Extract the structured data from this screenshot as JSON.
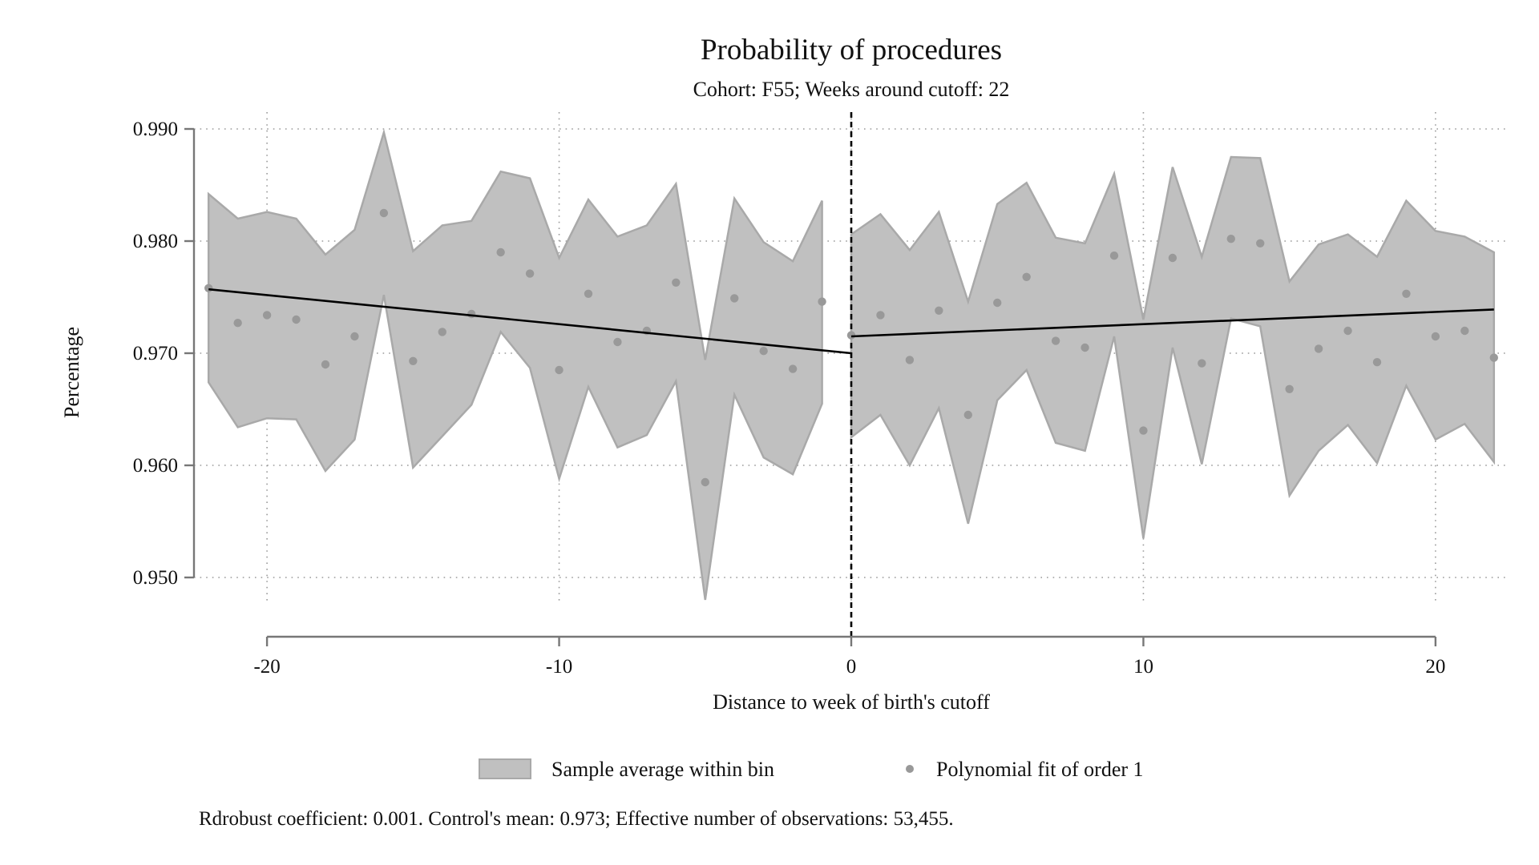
{
  "chart_data": {
    "type": "scatter",
    "title": "Probability of procedures",
    "subtitle": "Cohort: F55; Weeks around cutoff: 22",
    "xlabel": "Distance to week of birth's cutoff",
    "ylabel": "Percentage",
    "xlim": [
      -22.5,
      22.5
    ],
    "ylim": [
      0.9465,
      0.9915
    ],
    "xticks": [
      -20,
      -10,
      0,
      10,
      20
    ],
    "xtick_labels": [
      "-20",
      "-10",
      "0",
      "10",
      "20"
    ],
    "yticks": [
      0.95,
      0.96,
      0.97,
      0.98,
      0.99
    ],
    "ytick_labels": [
      "0.950",
      "0.960",
      "0.970",
      "0.980",
      "0.990"
    ],
    "grid": true,
    "cutoff_x": 0,
    "legend_position": "bottom",
    "legend": [
      "Sample average within bin",
      "Polynomial fit of order 1"
    ],
    "note": "Rdrobust coefficient: 0.001. Control's mean: 0.973; Effective number of observations: 53,455.",
    "colors": {
      "band": "#c0c0c0",
      "band_edge": "#a9a9a9",
      "points": "#999999",
      "fit": "#000000",
      "axis": "#777777",
      "grid": "#9a9a9a"
    },
    "series": [
      {
        "name": "Sample average within bin",
        "x": [
          -22,
          -21,
          -20,
          -19,
          -18,
          -17,
          -16,
          -15,
          -14,
          -13,
          -12,
          -11,
          -10,
          -9,
          -8,
          -7,
          -6,
          -5,
          -4,
          -3,
          -2,
          -1
        ],
        "y": [
          0.9758,
          0.9727,
          0.9734,
          0.973,
          0.969,
          0.9715,
          0.9825,
          0.9693,
          0.9719,
          0.9735,
          0.979,
          0.9771,
          0.9685,
          0.9753,
          0.971,
          0.972,
          0.9763,
          0.9585,
          0.9749,
          0.9702,
          0.9686,
          0.9746
        ],
        "ci_low": [
          0.9674,
          0.9634,
          0.9642,
          0.9641,
          0.9595,
          0.9623,
          0.9752,
          0.9598,
          0.9626,
          0.9654,
          0.9719,
          0.9687,
          0.9588,
          0.967,
          0.9616,
          0.9627,
          0.9675,
          0.948,
          0.9663,
          0.9607,
          0.9592,
          0.9655
        ],
        "ci_high": [
          0.9842,
          0.982,
          0.9826,
          0.982,
          0.9788,
          0.981,
          0.9897,
          0.9791,
          0.9814,
          0.9818,
          0.9862,
          0.9856,
          0.9785,
          0.9837,
          0.9804,
          0.9814,
          0.9851,
          0.9694,
          0.9838,
          0.9799,
          0.9782,
          0.9836
        ]
      },
      {
        "name": "Sample average within bin",
        "x": [
          0,
          1,
          2,
          3,
          4,
          5,
          6,
          7,
          8,
          9,
          10,
          11,
          12,
          13,
          14,
          15,
          16,
          17,
          18,
          19,
          20,
          21,
          22
        ],
        "y": [
          0.9716,
          0.9734,
          0.9694,
          0.9738,
          0.9645,
          0.9745,
          0.9768,
          0.9711,
          0.9705,
          0.9787,
          0.9631,
          0.9785,
          0.9691,
          0.9802,
          0.9798,
          0.9668,
          0.9704,
          0.972,
          0.9692,
          0.9753,
          0.9715,
          0.972,
          0.9696
        ],
        "ci_low": [
          0.9625,
          0.9645,
          0.96,
          0.9651,
          0.9548,
          0.9658,
          0.9685,
          0.962,
          0.9613,
          0.9715,
          0.9535,
          0.9705,
          0.9601,
          0.9731,
          0.9724,
          0.9573,
          0.9613,
          0.9636,
          0.9602,
          0.9671,
          0.9623,
          0.9637,
          0.9603
        ],
        "ci_high": [
          0.9806,
          0.9824,
          0.9792,
          0.9826,
          0.9746,
          0.9833,
          0.9852,
          0.9803,
          0.9798,
          0.986,
          0.973,
          0.9866,
          0.9786,
          0.9875,
          0.9874,
          0.9764,
          0.9797,
          0.9806,
          0.9786,
          0.9836,
          0.9809,
          0.9804,
          0.979
        ]
      },
      {
        "name": "Polynomial fit of order 1",
        "segments": [
          {
            "x": [
              -22,
              0
            ],
            "y": [
              0.9757,
              0.97
            ]
          },
          {
            "x": [
              0,
              22
            ],
            "y": [
              0.9715,
              0.9739
            ]
          }
        ]
      }
    ]
  }
}
